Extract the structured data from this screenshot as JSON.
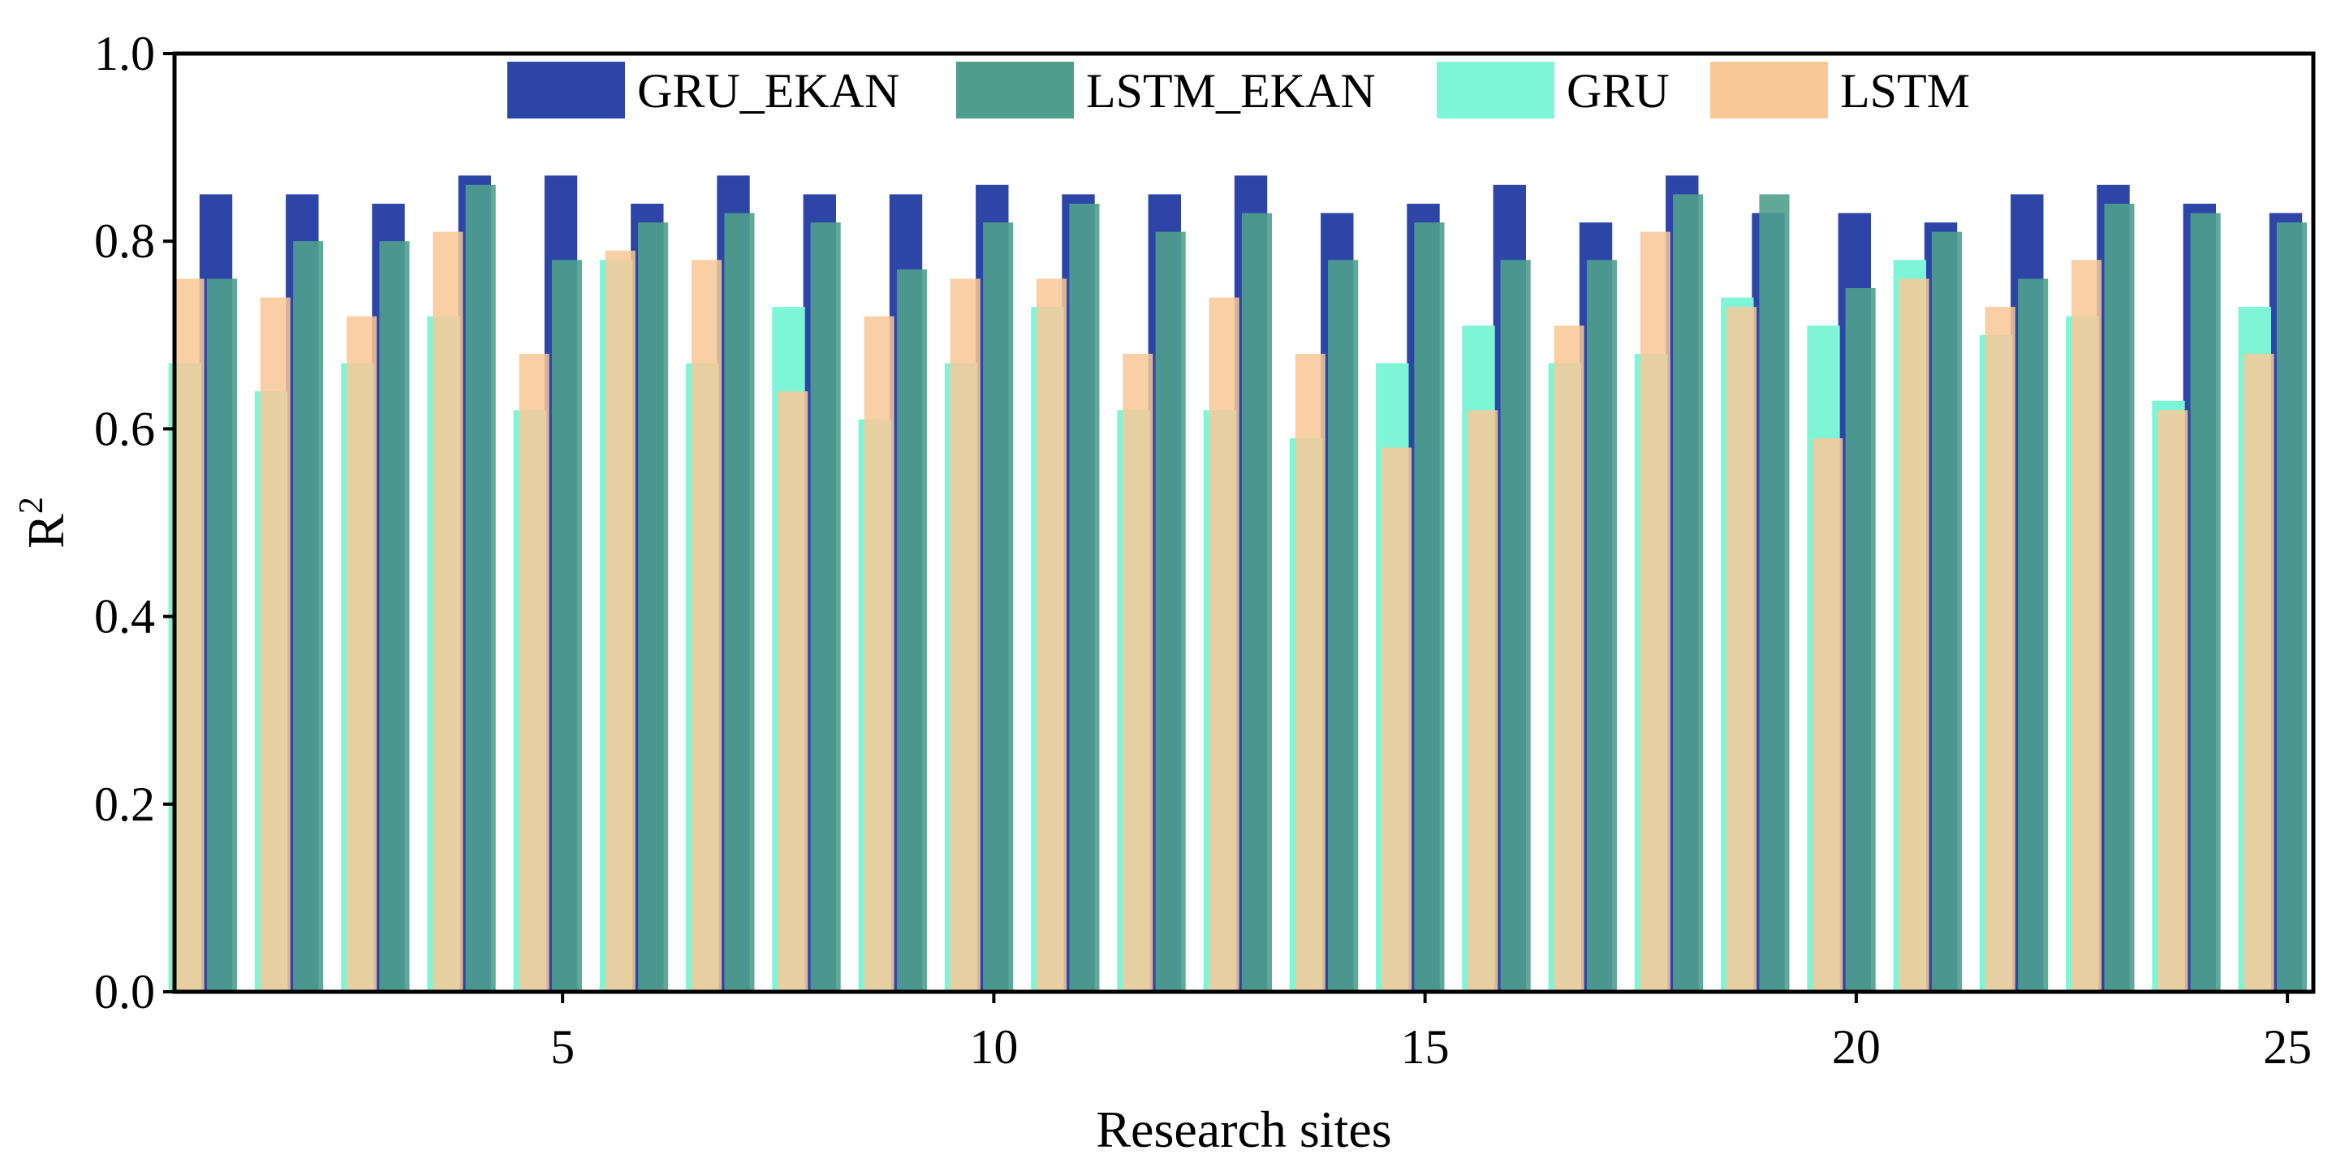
{
  "chart_data": {
    "type": "bar",
    "title": "",
    "xlabel": "Research sites",
    "ylabel": "R",
    "ylabel_superscript": "2",
    "ylim": [
      0,
      1.0
    ],
    "xlim": [
      0.5,
      25.3
    ],
    "yticks": [
      "0.0",
      "0.2",
      "0.4",
      "0.6",
      "0.8",
      "1.0"
    ],
    "ytick_values": [
      0,
      0.2,
      0.4,
      0.6,
      0.8,
      1.0
    ],
    "xticks": [
      "5",
      "10",
      "15",
      "20",
      "25"
    ],
    "xtick_values": [
      5,
      10,
      15,
      20,
      25
    ],
    "legend_position": "top-center",
    "x": [
      1,
      2,
      3,
      4,
      5,
      6,
      7,
      8,
      9,
      10,
      11,
      12,
      13,
      14,
      15,
      16,
      17,
      18,
      19,
      20,
      21,
      22,
      23,
      24,
      25
    ],
    "series": [
      {
        "name": "GRU_EKAN",
        "color": "#2e45a8",
        "values": [
          0.85,
          0.85,
          0.84,
          0.87,
          0.87,
          0.84,
          0.87,
          0.85,
          0.85,
          0.86,
          0.85,
          0.85,
          0.87,
          0.83,
          0.84,
          0.86,
          0.82,
          0.87,
          0.83,
          0.83,
          0.82,
          0.85,
          0.86,
          0.84,
          0.83
        ]
      },
      {
        "name": "LSTM_EKAN",
        "color": "#4f9e8c",
        "values": [
          0.76,
          0.8,
          0.8,
          0.86,
          0.78,
          0.82,
          0.83,
          0.82,
          0.77,
          0.82,
          0.84,
          0.81,
          0.83,
          0.78,
          0.82,
          0.78,
          0.78,
          0.85,
          0.85,
          0.75,
          0.81,
          0.76,
          0.84,
          0.83,
          0.82
        ]
      },
      {
        "name": "GRU",
        "color": "#7ff5d8",
        "values": [
          0.67,
          0.64,
          0.67,
          0.72,
          0.62,
          0.78,
          0.67,
          0.73,
          0.61,
          0.67,
          0.73,
          0.62,
          0.62,
          0.59,
          0.67,
          0.71,
          0.67,
          0.68,
          0.74,
          0.71,
          0.78,
          0.7,
          0.72,
          0.63,
          0.73
        ]
      },
      {
        "name": "LSTM",
        "color": "#f8c896",
        "values": [
          0.76,
          0.74,
          0.72,
          0.81,
          0.68,
          0.79,
          0.78,
          0.64,
          0.72,
          0.76,
          0.76,
          0.68,
          0.74,
          0.68,
          0.58,
          0.62,
          0.71,
          0.81,
          0.73,
          0.59,
          0.76,
          0.73,
          0.78,
          0.62,
          0.68
        ]
      }
    ]
  }
}
